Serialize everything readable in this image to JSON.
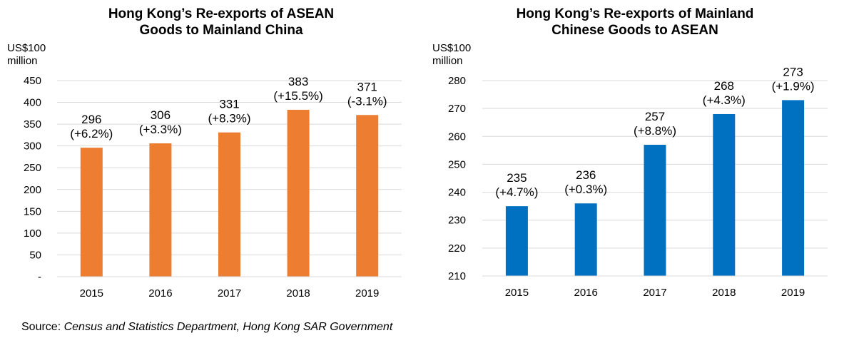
{
  "source": {
    "prefix": "Source: ",
    "text": "Census and Statistics Department, Hong Kong SAR Government"
  },
  "colors": {
    "left_bars": "#ED7D31",
    "right_bars": "#0070C0",
    "grid": "#d9d9d9"
  },
  "chart_data": [
    {
      "type": "bar",
      "title": "Hong Kong’s Re-exports of ASEAN\nGoods to Mainland China",
      "unit_label": [
        "US$100",
        "million"
      ],
      "categories": [
        "2015",
        "2016",
        "2017",
        "2018",
        "2019"
      ],
      "values": [
        296,
        306,
        331,
        383,
        371
      ],
      "data_labels": [
        [
          "296",
          "(+6.2%)"
        ],
        [
          "306",
          "(+3.3%)"
        ],
        [
          "331",
          "(+8.3%)"
        ],
        [
          "383",
          "(+15.5%)"
        ],
        [
          "371",
          "(-3.1%)"
        ]
      ],
      "ylim": [
        0,
        450
      ],
      "yticks": [
        0,
        50,
        100,
        150,
        200,
        250,
        300,
        350,
        400,
        450
      ],
      "ytick_labels": [
        "-",
        "50",
        "100",
        "150",
        "200",
        "250",
        "300",
        "350",
        "400",
        "450"
      ],
      "grid": true,
      "color": "#ED7D31"
    },
    {
      "type": "bar",
      "title": "Hong Kong’s Re-exports of Mainland\nChinese Goods to ASEAN",
      "unit_label": [
        "US$100",
        "million"
      ],
      "categories": [
        "2015",
        "2016",
        "2017",
        "2018",
        "2019"
      ],
      "values": [
        235,
        236,
        257,
        268,
        273
      ],
      "data_labels": [
        [
          "235",
          "(+4.7%)"
        ],
        [
          "236",
          "(+0.3%)"
        ],
        [
          "257",
          "(+8.8%)"
        ],
        [
          "268",
          "(+4.3%)"
        ],
        [
          "273",
          "(+1.9%)"
        ]
      ],
      "ylim": [
        210,
        280
      ],
      "yticks": [
        210,
        220,
        230,
        240,
        250,
        260,
        270,
        280
      ],
      "ytick_labels": [
        "210",
        "220",
        "230",
        "240",
        "250",
        "260",
        "270",
        "280"
      ],
      "grid": true,
      "color": "#0070C0"
    }
  ]
}
